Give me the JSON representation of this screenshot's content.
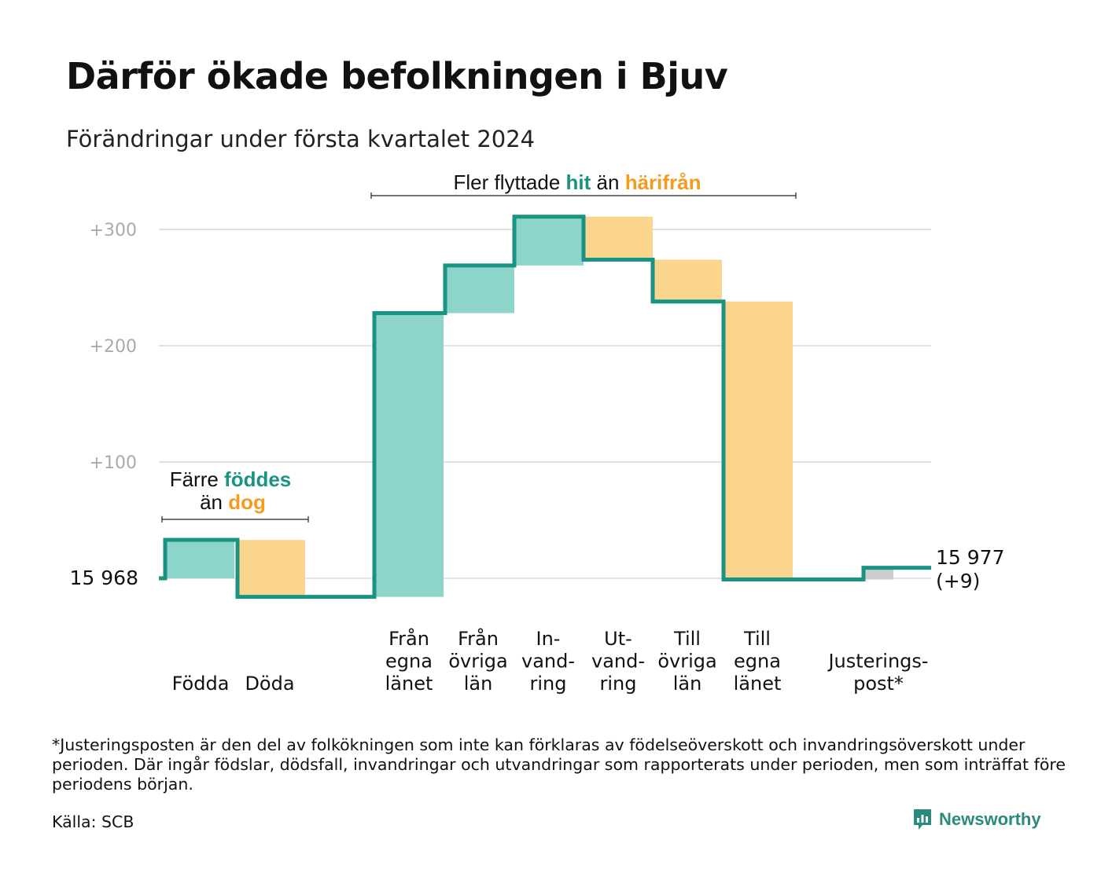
{
  "header": {
    "title": "Därför ökade befolkningen i Bjuv",
    "subtitle": "Förändringar under första kvartalet 2024"
  },
  "annotations": {
    "moves": {
      "prefix": "Fler flyttade",
      "hit": "hit",
      "mid": "än",
      "from": "härifrån"
    },
    "births": {
      "line1_prefix": "Färre",
      "line1_word": "föddes",
      "line2_prefix": "än",
      "line2_word": "dog"
    }
  },
  "chart_data": {
    "type": "waterfall",
    "title": "Därför ökade befolkningen i Bjuv",
    "subtitle": "Förändringar under första kvartalet 2024",
    "start": {
      "label": "15  968",
      "value": 0
    },
    "end": {
      "label": "15 977",
      "delta_label": "(+9)",
      "value": 9
    },
    "yticks": [
      {
        "value": 100,
        "label": "+100"
      },
      {
        "value": 200,
        "label": "+200"
      },
      {
        "value": 300,
        "label": "+300"
      }
    ],
    "ylim": [
      -25,
      320
    ],
    "grid": true,
    "steps": [
      {
        "label_lines": [
          "Födda"
        ],
        "change": 33,
        "kind": "in"
      },
      {
        "label_lines": [
          "Döda"
        ],
        "change": -49,
        "kind": "out"
      },
      {
        "label_lines": [
          "Från",
          "egna",
          "länet"
        ],
        "change": 244,
        "kind": "in"
      },
      {
        "label_lines": [
          "Från",
          "övriga",
          "län"
        ],
        "change": 41,
        "kind": "in"
      },
      {
        "label_lines": [
          "In-",
          "vand-",
          "ring"
        ],
        "change": 42,
        "kind": "in"
      },
      {
        "label_lines": [
          "Ut-",
          "vand-",
          "ring"
        ],
        "change": -37,
        "kind": "out"
      },
      {
        "label_lines": [
          "Till",
          "övriga",
          "län"
        ],
        "change": -36,
        "kind": "out"
      },
      {
        "label_lines": [
          "Till",
          "egna",
          "länet"
        ],
        "change": -239,
        "kind": "out"
      },
      {
        "label_lines": [
          "Justerings-",
          "post*"
        ],
        "change": 10,
        "kind": "adjust"
      }
    ],
    "colors": {
      "in": "#8dd5cb",
      "out": "#fbd58e",
      "adjust": "#cccccc",
      "line": "#1a9482",
      "accent_in": "#1a9482",
      "accent_out": "#f39c1f",
      "grid": "#e2e2e2",
      "tick": "#aaaaaa"
    }
  },
  "footnote": "*Justeringsposten är den del av folkökningen som inte kan förklaras av födelseöverskott och invandringsöverskott under perioden. Där ingår födslar, dödsfall, invandringar och utvandringar som rapporterats under perioden, men som inträffat före periodens början.",
  "source": "Källa: SCB",
  "brand": {
    "name": "Newsworthy",
    "icon": "newsworthy-logo-icon"
  }
}
